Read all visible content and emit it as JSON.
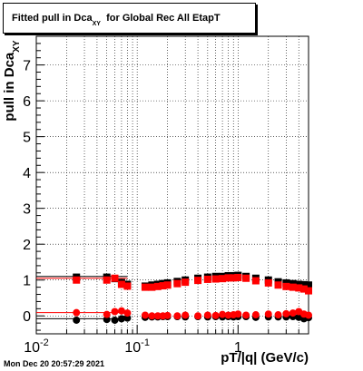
{
  "chart_data": {
    "type": "scatter",
    "title_main": "Fitted pull in Dca",
    "title_sub": "XY",
    "title_rest": "for Global Rec All EtapT",
    "ylabel_main": "pull in Dca",
    "ylabel_sub": "XY",
    "xlabel": "pT/|q| (GeV/c)",
    "xscale": "log",
    "xlim": [
      0.01,
      5.0
    ],
    "ylim": [
      -0.5,
      7.8
    ],
    "grid": true,
    "x_tick_labels": [
      {
        "value": 0.01,
        "base": "10",
        "exp": "-2"
      },
      {
        "value": 0.1,
        "base": "10",
        "exp": "-1"
      },
      {
        "value": 1,
        "base": "1",
        "exp": ""
      }
    ],
    "y_tick_labels": [
      0,
      1,
      2,
      3,
      4,
      5,
      6,
      7
    ],
    "series": [
      {
        "color": "#000000",
        "marker": "square",
        "x": [
          0.025,
          0.05,
          0.06,
          0.07,
          0.08,
          0.12,
          0.14,
          0.16,
          0.18,
          0.2,
          0.25,
          0.3,
          0.4,
          0.5,
          0.6,
          0.7,
          0.8,
          0.9,
          1.0,
          1.2,
          1.5,
          2.0,
          2.5,
          3.0,
          3.5,
          4.0,
          4.5,
          5.0
        ],
        "y": [
          1.08,
          1.08,
          1.04,
          0.93,
          0.88,
          0.83,
          0.86,
          0.88,
          0.9,
          0.92,
          0.96,
          1.0,
          1.05,
          1.08,
          1.1,
          1.1,
          1.12,
          1.12,
          1.13,
          1.1,
          1.05,
          1.0,
          0.95,
          0.92,
          0.9,
          0.88,
          0.87,
          0.86
        ]
      },
      {
        "color": "#ff0000",
        "marker": "square",
        "x": [
          0.025,
          0.05,
          0.06,
          0.07,
          0.08,
          0.12,
          0.14,
          0.16,
          0.18,
          0.2,
          0.25,
          0.3,
          0.4,
          0.5,
          0.6,
          0.7,
          0.8,
          0.9,
          1.0,
          1.2,
          1.5,
          2.0,
          2.5,
          3.0,
          3.5,
          4.0,
          4.5,
          5.0
        ],
        "y": [
          1.0,
          1.0,
          1.05,
          0.88,
          0.83,
          0.8,
          0.8,
          0.82,
          0.84,
          0.86,
          0.9,
          0.94,
          0.99,
          1.02,
          1.03,
          1.04,
          1.06,
          1.06,
          1.07,
          1.05,
          0.98,
          0.92,
          0.86,
          0.82,
          0.8,
          0.78,
          0.75,
          0.7
        ]
      },
      {
        "color": "#000000",
        "marker": "circle",
        "x": [
          0.025,
          0.05,
          0.06,
          0.07,
          0.08,
          0.12,
          0.14,
          0.16,
          0.18,
          0.2,
          0.25,
          0.3,
          0.4,
          0.5,
          0.6,
          0.7,
          0.8,
          0.9,
          1.0,
          1.2,
          1.5,
          2.0,
          2.5,
          3.0,
          3.5,
          4.0,
          4.5,
          5.0
        ],
        "y": [
          -0.12,
          -0.1,
          -0.12,
          -0.08,
          -0.06,
          -0.04,
          -0.03,
          -0.03,
          -0.02,
          -0.02,
          -0.02,
          -0.03,
          -0.02,
          -0.03,
          -0.02,
          -0.03,
          -0.02,
          -0.03,
          -0.02,
          -0.02,
          -0.04,
          -0.03,
          -0.03,
          -0.03,
          -0.02,
          -0.04,
          -0.08,
          -0.05
        ]
      },
      {
        "color": "#ff0000",
        "marker": "circle",
        "x": [
          0.025,
          0.05,
          0.06,
          0.07,
          0.08,
          0.12,
          0.14,
          0.16,
          0.18,
          0.2,
          0.25,
          0.3,
          0.4,
          0.5,
          0.6,
          0.7,
          0.8,
          0.9,
          1.0,
          1.2,
          1.5,
          2.0,
          2.5,
          3.0,
          3.5,
          4.0,
          4.5,
          5.0
        ],
        "y": [
          0.09,
          0.04,
          0.12,
          0.14,
          0.08,
          0.02,
          0.0,
          0.0,
          0.0,
          0.01,
          0.0,
          0.02,
          0.0,
          0.02,
          0.01,
          0.04,
          0.02,
          0.03,
          0.05,
          0.02,
          0.03,
          0.05,
          0.03,
          0.06,
          0.08,
          0.12,
          0.05,
          0.02
        ]
      }
    ],
    "reference_lines": [
      {
        "color": "#000000",
        "y": 1.1,
        "x_from": 0.01,
        "x_to": 0.08
      },
      {
        "color": "#ff0000",
        "y": 1.05,
        "x_from": 0.01,
        "x_to": 0.08
      },
      {
        "color": "#ff0000",
        "y": 0.09,
        "x_from": 0.01,
        "x_to": 0.08
      },
      {
        "color": "#000000",
        "y": -0.08,
        "x_from": 0.01,
        "x_to": 0.08
      }
    ]
  },
  "footer": {
    "timestamp": "Mon Dec 20 20:57:29 2021"
  }
}
